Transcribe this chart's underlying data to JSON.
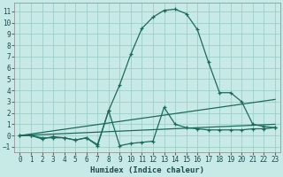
{
  "xlabel": "Humidex (Indice chaleur)",
  "bg_color": "#c8eae6",
  "grid_color": "#9ecfca",
  "line_color": "#1a6b5a",
  "xlim": [
    -0.5,
    23.5
  ],
  "ylim": [
    -1.5,
    11.8
  ],
  "xticks": [
    0,
    1,
    2,
    3,
    4,
    5,
    6,
    7,
    8,
    9,
    10,
    11,
    12,
    13,
    14,
    15,
    16,
    17,
    18,
    19,
    20,
    21,
    22,
    23
  ],
  "yticks": [
    -1,
    0,
    1,
    2,
    3,
    4,
    5,
    6,
    7,
    8,
    9,
    10,
    11
  ],
  "curve1_x": [
    0,
    1,
    2,
    3,
    4,
    5,
    6,
    7,
    8,
    9,
    10,
    11,
    12,
    13,
    14,
    15,
    16,
    17,
    18,
    19,
    20,
    21,
    22,
    23
  ],
  "curve1_y": [
    0.0,
    0.0,
    -0.2,
    -0.2,
    -0.2,
    -0.4,
    -0.2,
    -0.9,
    2.2,
    4.5,
    7.2,
    9.5,
    10.5,
    11.1,
    11.2,
    10.8,
    9.4,
    6.5,
    3.8,
    3.8,
    3.0,
    1.0,
    0.8,
    0.7
  ],
  "curve2_x": [
    0,
    1,
    2,
    3,
    4,
    5,
    6,
    7,
    8,
    9,
    10,
    11,
    12,
    13,
    14,
    15,
    16,
    17,
    18,
    19,
    20,
    21,
    22,
    23
  ],
  "curve2_y": [
    0.0,
    0.0,
    -0.3,
    -0.1,
    -0.2,
    -0.4,
    -0.2,
    -0.8,
    2.2,
    -0.9,
    -0.7,
    -0.6,
    -0.5,
    2.5,
    1.0,
    0.7,
    0.6,
    0.5,
    0.5,
    0.5,
    0.5,
    0.6,
    0.6,
    0.7
  ],
  "line1_x": [
    0,
    23
  ],
  "line1_y": [
    0.0,
    3.2
  ],
  "line2_x": [
    0,
    23
  ],
  "line2_y": [
    0.0,
    1.0
  ]
}
